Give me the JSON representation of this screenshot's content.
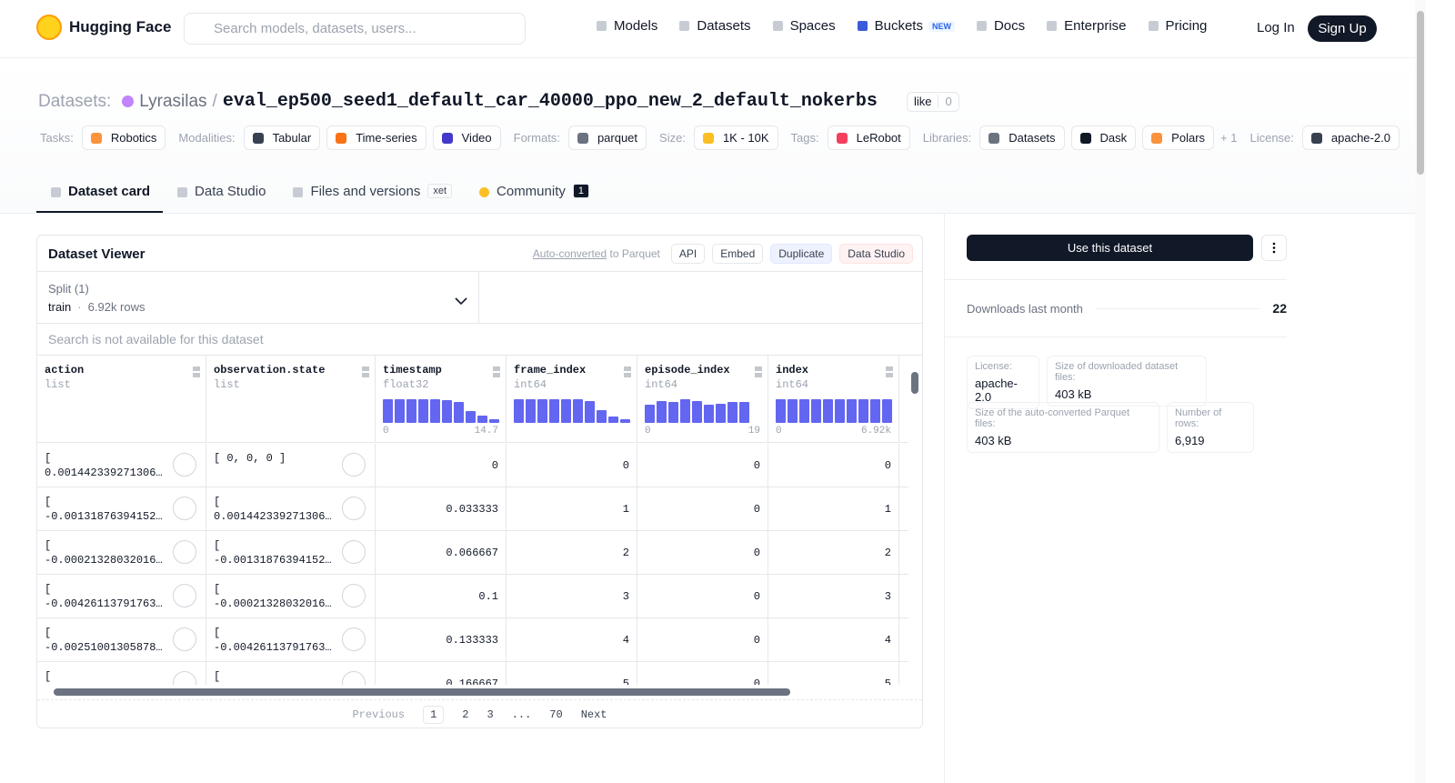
{
  "nav": {
    "brand": "Hugging Face",
    "search_placeholder": "Search models, datasets, users...",
    "links": [
      "Models",
      "Datasets",
      "Spaces",
      "Buckets",
      "Docs",
      "Enterprise",
      "Pricing"
    ],
    "badge_new": "NEW",
    "login": "Log In",
    "signup": "Sign Up"
  },
  "header": {
    "prefix": "Datasets:",
    "owner": "Lyrasilas",
    "separator": "/",
    "name": "eval_ep500_seed1_default_car_40000_ppo_new_2_default_nokerbs",
    "like": "like",
    "like_count": 0
  },
  "tags": [
    {
      "label": "Tasks:",
      "items": [
        "Robotics"
      ]
    },
    {
      "label": "Modalities:",
      "items": [
        "Tabular",
        "Time-series",
        "Video"
      ]
    },
    {
      "label": "Formats:",
      "items": [
        "parquet"
      ]
    },
    {
      "label": "Size:",
      "items": [
        "1K - 10K"
      ]
    },
    {
      "label": "Tags:",
      "items": [
        "LeRobot"
      ]
    },
    {
      "label": "Libraries:",
      "items": [
        "Datasets",
        "Dask",
        "Polars"
      ],
      "more": "+ 1"
    },
    {
      "label": "License:",
      "items": [
        "apache-2.0"
      ]
    }
  ],
  "tabs": [
    {
      "label": "Dataset card"
    },
    {
      "label": "Data Studio"
    },
    {
      "label": "Files and versions",
      "badge": "xet"
    },
    {
      "label": "Community",
      "badge": "1"
    }
  ],
  "viewer": {
    "title": "Dataset Viewer",
    "auto_link": "Auto-converted",
    "auto_rest": "to Parquet",
    "buttons": [
      "API",
      "Embed",
      "Duplicate",
      "Data Studio"
    ],
    "split_label": "Split (1)",
    "split_name": "train",
    "split_sep": "·",
    "split_rows": "6.92k rows",
    "search": "Search is not available for this dataset",
    "columns": [
      {
        "name": "action",
        "type": "list"
      },
      {
        "name": "observation.state",
        "type": "list"
      },
      {
        "name": "timestamp",
        "type": "float32",
        "hist": [
          100,
          100,
          100,
          100,
          100,
          96,
          88,
          50,
          30,
          14
        ],
        "range": [
          "0",
          "14.7"
        ]
      },
      {
        "name": "frame_index",
        "type": "int64",
        "hist": [
          100,
          100,
          100,
          100,
          100,
          100,
          92,
          54,
          26,
          14
        ]
      },
      {
        "name": "episode_index",
        "type": "int64",
        "hist": [
          78,
          92,
          88,
          100,
          92,
          78,
          80,
          90,
          90,
          0
        ],
        "range": [
          "0",
          "19"
        ]
      },
      {
        "name": "index",
        "type": "int64",
        "hist": [
          100,
          100,
          100,
          100,
          100,
          100,
          100,
          100,
          100,
          100
        ],
        "range": [
          "0",
          "6.92k"
        ]
      }
    ],
    "rows": [
      [
        "[\n0.001442339271306…",
        "[ 0, 0, 0 ]",
        0,
        0,
        0,
        0
      ],
      [
        "[\n-0.00131876394152…",
        "[\n0.001442339271306…",
        0.033333,
        1,
        0,
        1
      ],
      [
        "[\n-0.00021328032016…",
        "[\n-0.00131876394152…",
        0.066667,
        2,
        0,
        2
      ],
      [
        "[\n-0.00426113791763…",
        "[\n-0.00021328032016…",
        0.1,
        3,
        0,
        3
      ],
      [
        "[\n-0.00251001305878…",
        "[\n-0.00426113791763…",
        0.133333,
        4,
        0,
        4
      ],
      [
        "[",
        "[",
        0.166667,
        5,
        0,
        5
      ]
    ],
    "pagination": [
      "Previous",
      "1",
      "2",
      "3",
      "...",
      "70",
      "Next"
    ]
  },
  "sidebar": {
    "use": "Use this dataset",
    "downloads_label": "Downloads last month",
    "downloads": 22,
    "info": [
      {
        "label": "License:",
        "value": "apache-2.0"
      },
      {
        "label": "Size of downloaded dataset files:",
        "value": "403 kB"
      },
      {
        "label": "Size of the auto-converted Parquet files:",
        "value": "403 kB"
      },
      {
        "label": "Number of rows:",
        "value": "6,919"
      }
    ]
  }
}
